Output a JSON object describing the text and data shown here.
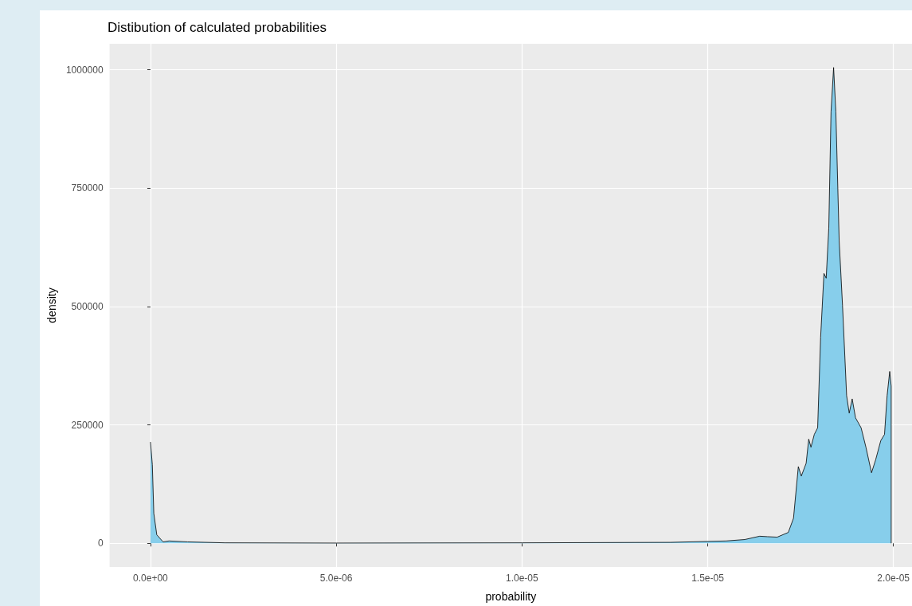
{
  "chart_data": {
    "type": "area",
    "title": "Distibution of calculated probabilities",
    "xlabel": "probability",
    "ylabel": "density",
    "series": [
      {
        "color": "#87ceeb",
        "x": [
          0,
          5e-08,
          9e-08,
          1.7e-07,
          3.4e-07,
          5e-07,
          1e-06,
          2e-06,
          5e-06,
          1e-05,
          1.4e-05,
          1.55e-05,
          1.6e-05,
          1.64e-05,
          1.661e-05,
          1.687e-05,
          1.717e-05,
          1.731e-05,
          1.744e-05,
          1.752e-05,
          1.765e-05,
          1.772e-05,
          1.778e-05,
          1.787e-05,
          1.796e-05,
          1.804e-05,
          1.813e-05,
          1.819e-05,
          1.826e-05,
          1.832e-05,
          1.839e-05,
          1.845e-05,
          1.854e-05,
          1.863e-05,
          1.874e-05,
          1.881e-05,
          1.889e-05,
          1.898e-05,
          1.913e-05,
          1.926e-05,
          1.941e-05,
          1.952e-05,
          1.966e-05,
          1.976e-05,
          1.983e-05,
          1.99e-05,
          1.994e-05,
          1.994e-05
        ],
        "values": [
          214000,
          166000,
          63000,
          18000,
          3000,
          5000,
          3000,
          1000,
          500,
          1000,
          2000,
          5000,
          8000,
          15000,
          14000,
          13000,
          23000,
          53000,
          162000,
          142000,
          169000,
          220000,
          203000,
          230000,
          244000,
          435000,
          570000,
          560000,
          666000,
          911000,
          1005000,
          911000,
          638000,
          502000,
          312000,
          275000,
          305000,
          265000,
          244000,
          203000,
          149000,
          176000,
          217000,
          230000,
          312000,
          363000,
          332000,
          0
        ]
      }
    ],
    "xlim": [
      -1.1e-06,
      2.05e-05
    ],
    "ylim": [
      -50000,
      1055000
    ],
    "xticks": [
      {
        "value": 0,
        "label": "0.0e+00"
      },
      {
        "value": 5e-06,
        "label": "5.0e-06"
      },
      {
        "value": 1e-05,
        "label": "1.0e-05"
      },
      {
        "value": 1.5e-05,
        "label": "1.5e-05"
      },
      {
        "value": 2e-05,
        "label": "2.0e-05"
      }
    ],
    "yticks": [
      0,
      250000,
      500000,
      750000,
      1000000
    ],
    "grid": true,
    "marker": "none",
    "line_style": "solid"
  }
}
